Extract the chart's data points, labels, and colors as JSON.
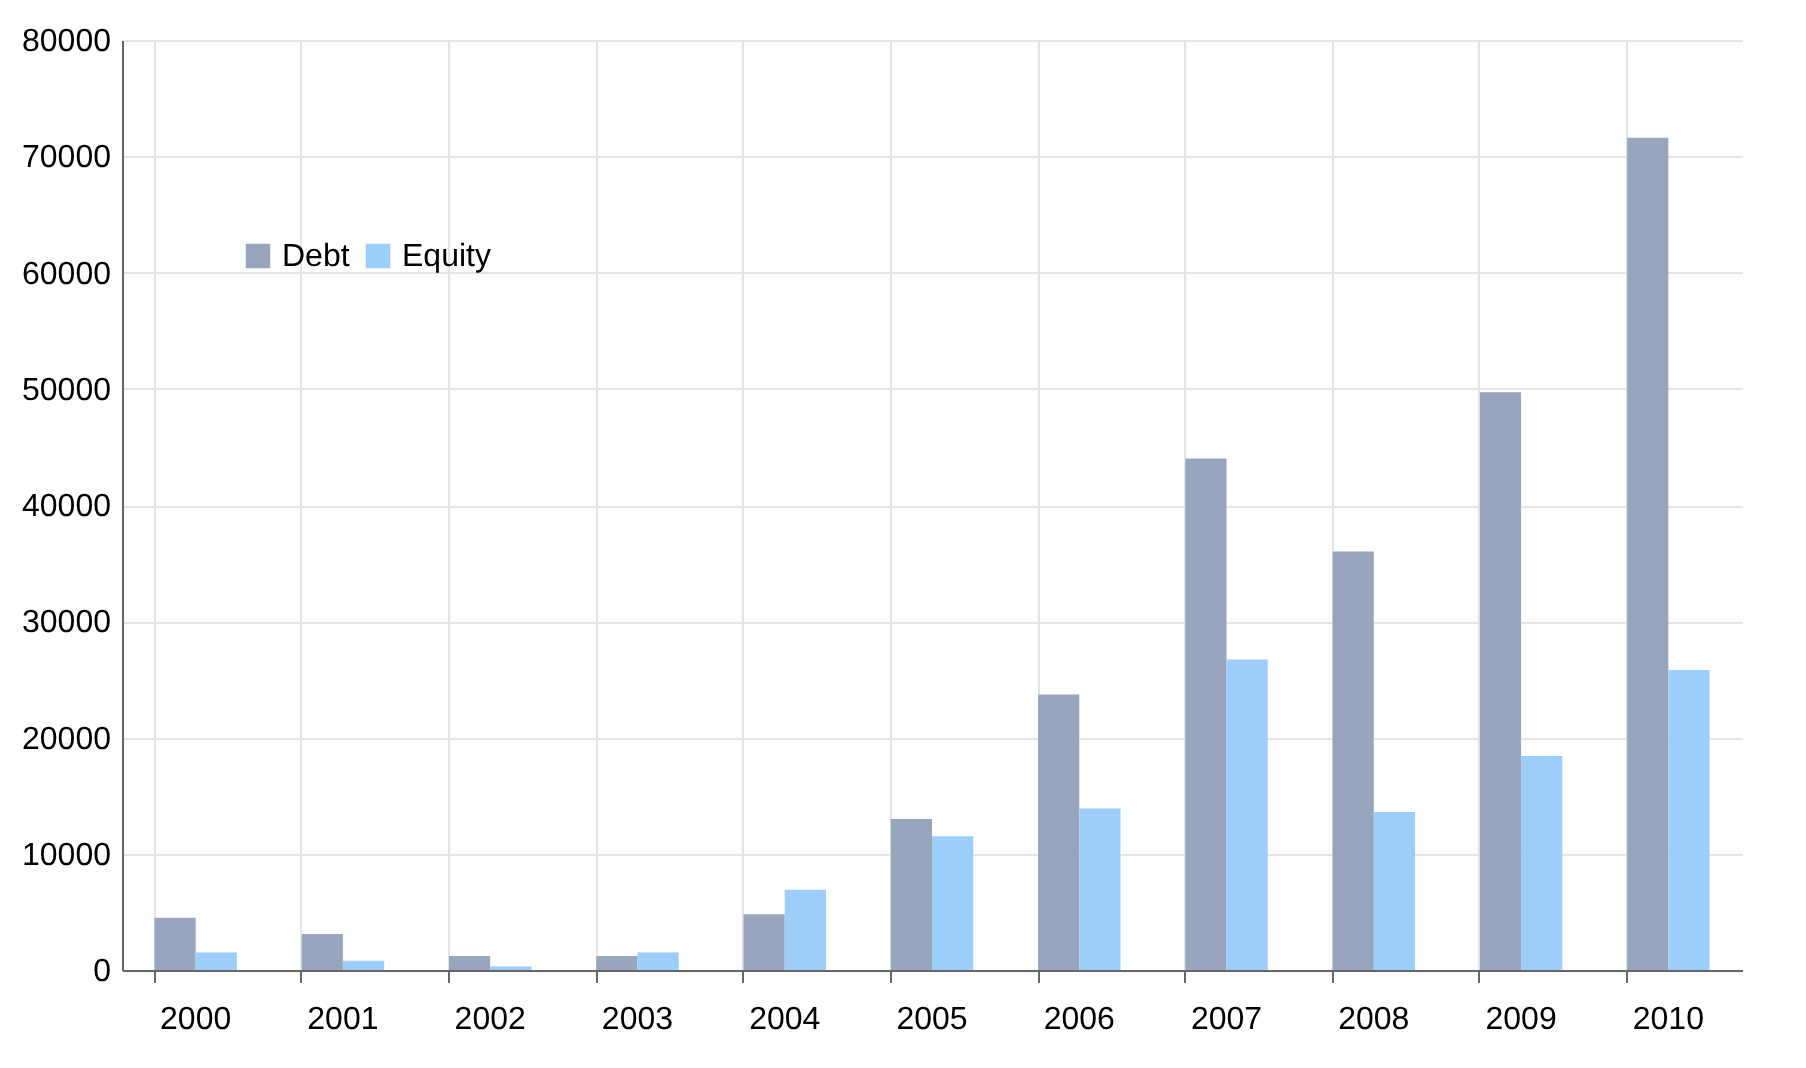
{
  "chart_data": {
    "type": "bar",
    "categories": [
      "2000",
      "2001",
      "2002",
      "2003",
      "2004",
      "2005",
      "2006",
      "2007",
      "2008",
      "2009",
      "2010"
    ],
    "series": [
      {
        "name": "Debt",
        "color": "#98a6bd",
        "values": [
          4500,
          3100,
          1200,
          1200,
          4800,
          13000,
          23700,
          44000,
          36000,
          49700,
          71600
        ]
      },
      {
        "name": "Equity",
        "color": "#9dcdf9",
        "values": [
          1500,
          800,
          300,
          1500,
          6900,
          11500,
          13900,
          26700,
          13600,
          18400,
          25800
        ]
      }
    ],
    "ylim": [
      0,
      80000
    ],
    "yticks": [
      0,
      10000,
      20000,
      30000,
      40000,
      50000,
      60000,
      70000,
      80000
    ],
    "grid": true,
    "legend": "top left"
  }
}
